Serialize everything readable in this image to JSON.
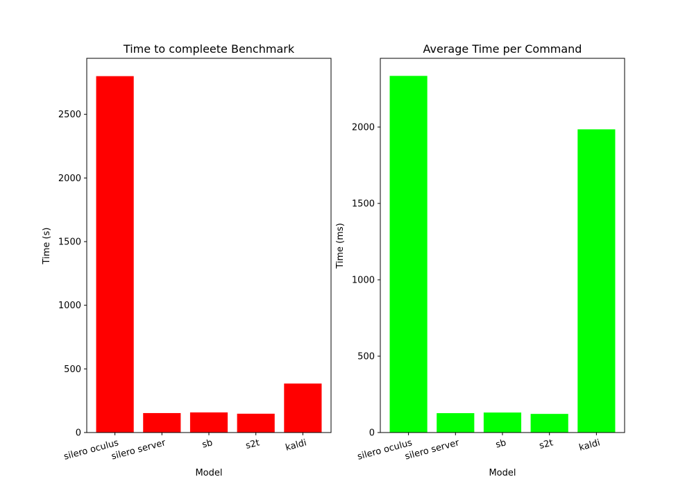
{
  "chart_data": [
    {
      "type": "bar",
      "title": "Time to compleete Benchmark",
      "xlabel": "Model",
      "ylabel": "Time (s)",
      "categories": [
        "silero oculus",
        "silero server",
        "sb",
        "s2t",
        "kaldi"
      ],
      "values": [
        2800,
        153,
        158,
        148,
        385
      ],
      "ylim": [
        0,
        2940
      ],
      "yticks": [
        0,
        500,
        1000,
        1500,
        2000,
        2500
      ],
      "color": "#ff0000",
      "grid": false
    },
    {
      "type": "bar",
      "title": "Average Time per Command",
      "xlabel": "Model",
      "ylabel": "Time (ms)",
      "categories": [
        "silero oculus",
        "silero server",
        "sb",
        "s2t",
        "kaldi"
      ],
      "values": [
        2335,
        127,
        131,
        122,
        1985
      ],
      "ylim": [
        0,
        2450
      ],
      "yticks": [
        0,
        500,
        1000,
        1500,
        2000
      ],
      "color": "#00ff00",
      "grid": false
    }
  ]
}
